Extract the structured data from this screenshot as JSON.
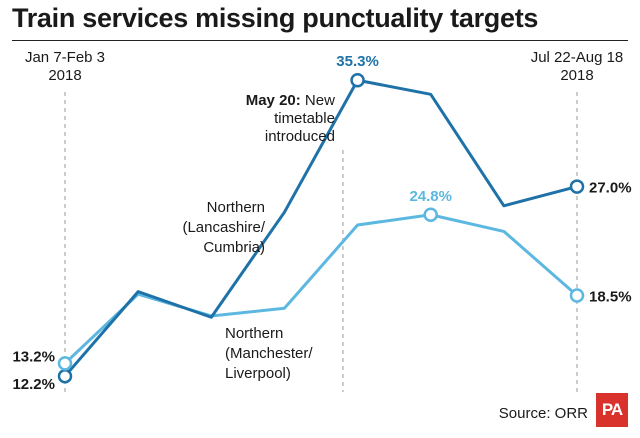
{
  "title": "Train services missing punctuality targets",
  "source": "Source: ORR",
  "logo_text": "PA",
  "chart_data": {
    "type": "line",
    "x": [
      1,
      2,
      3,
      4,
      5,
      6,
      7,
      8
    ],
    "ylim": [
      8,
      40
    ],
    "grid": false,
    "period_labels": [
      {
        "line1": "Jan 7-Feb 3",
        "line2": "2018",
        "x": 1
      },
      {
        "line1": "Jul 22-Aug 18",
        "line2": "2018",
        "x": 8
      }
    ],
    "event": {
      "x": 4.8,
      "bold": "May 20:",
      "line1_rest": "New",
      "line2": "timetable",
      "line3": "introduced"
    },
    "series": [
      {
        "name": "Northern (Lancashire/ Cumbria)",
        "label_lines": [
          "Northern",
          "(Lancashire/",
          "Cumbria)"
        ],
        "color": "#1f72a8",
        "values": [
          12.2,
          18.8,
          16.8,
          25.0,
          35.3,
          34.2,
          25.5,
          27.0
        ],
        "value_labels": {
          "0": "12.2%",
          "4": "35.3%",
          "7": "27.0%"
        }
      },
      {
        "name": "Northern (Manchester/ Liverpool)",
        "label_lines": [
          "Northern",
          "(Manchester/",
          "Liverpool)"
        ],
        "color": "#5cb8e0",
        "values": [
          13.2,
          18.6,
          16.9,
          17.5,
          24.0,
          24.8,
          23.5,
          18.5
        ],
        "value_labels": {
          "0": "13.2%",
          "5": "24.8%",
          "7": "18.5%"
        }
      }
    ]
  }
}
